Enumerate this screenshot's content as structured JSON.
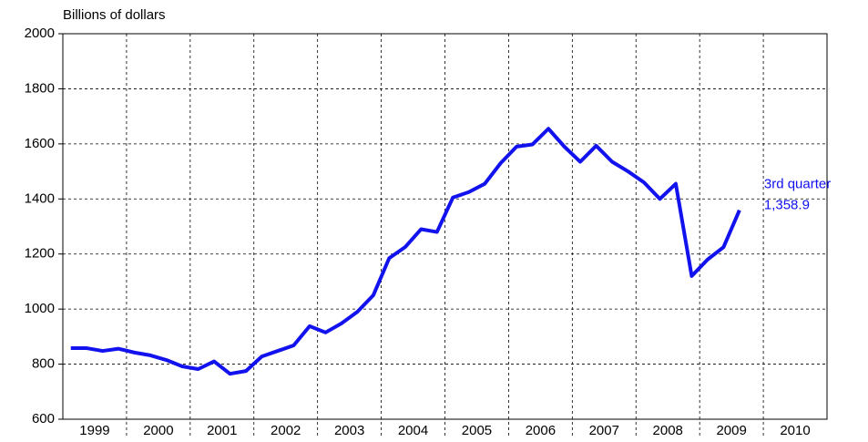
{
  "chart_data": {
    "type": "line",
    "y_label": "Billions of dollars",
    "categories": [
      "1999",
      null,
      null,
      null,
      "2000",
      null,
      null,
      null,
      "2001",
      null,
      null,
      null,
      "2002",
      null,
      null,
      null,
      "2003",
      null,
      null,
      null,
      "2004",
      null,
      null,
      null,
      "2005",
      null,
      null,
      null,
      "2006",
      null,
      null,
      null,
      "2007",
      null,
      null,
      null,
      "2008",
      null,
      null,
      null,
      "2009",
      null,
      null,
      null,
      "2010",
      null,
      null,
      null
    ],
    "series": [
      {
        "color": "#1212ee",
        "values": [
          858,
          858,
          848,
          856,
          842,
          832,
          815,
          792,
          782,
          810,
          765,
          775,
          828,
          848,
          868,
          938,
          915,
          948,
          990,
          1050,
          1185,
          1225,
          1290,
          1280,
          1405,
          1425,
          1455,
          1530,
          1590,
          1598,
          1655,
          1590,
          1535,
          1593,
          1535,
          1500,
          1460,
          1400,
          1455,
          1120,
          1180,
          1225,
          1358.9,
          null,
          null,
          null,
          null,
          null
        ],
        "value_labels": [
          null,
          null,
          null,
          null,
          null,
          null,
          null,
          null,
          null,
          null,
          null,
          null,
          null,
          null,
          null,
          null,
          null,
          null,
          null,
          null,
          null,
          null,
          null,
          null,
          null,
          null,
          null,
          null,
          null,
          null,
          null,
          null,
          null,
          null,
          null,
          null,
          null,
          null,
          null,
          null,
          null,
          null,
          "1,358.9",
          null,
          null,
          null,
          null,
          null
        ]
      }
    ],
    "annotation": "3rd quarter",
    "ylim": [
      600,
      2000
    ],
    "yticks": [
      600,
      800,
      1000,
      1200,
      1400,
      1600,
      1800,
      2000
    ],
    "grid": true
  }
}
